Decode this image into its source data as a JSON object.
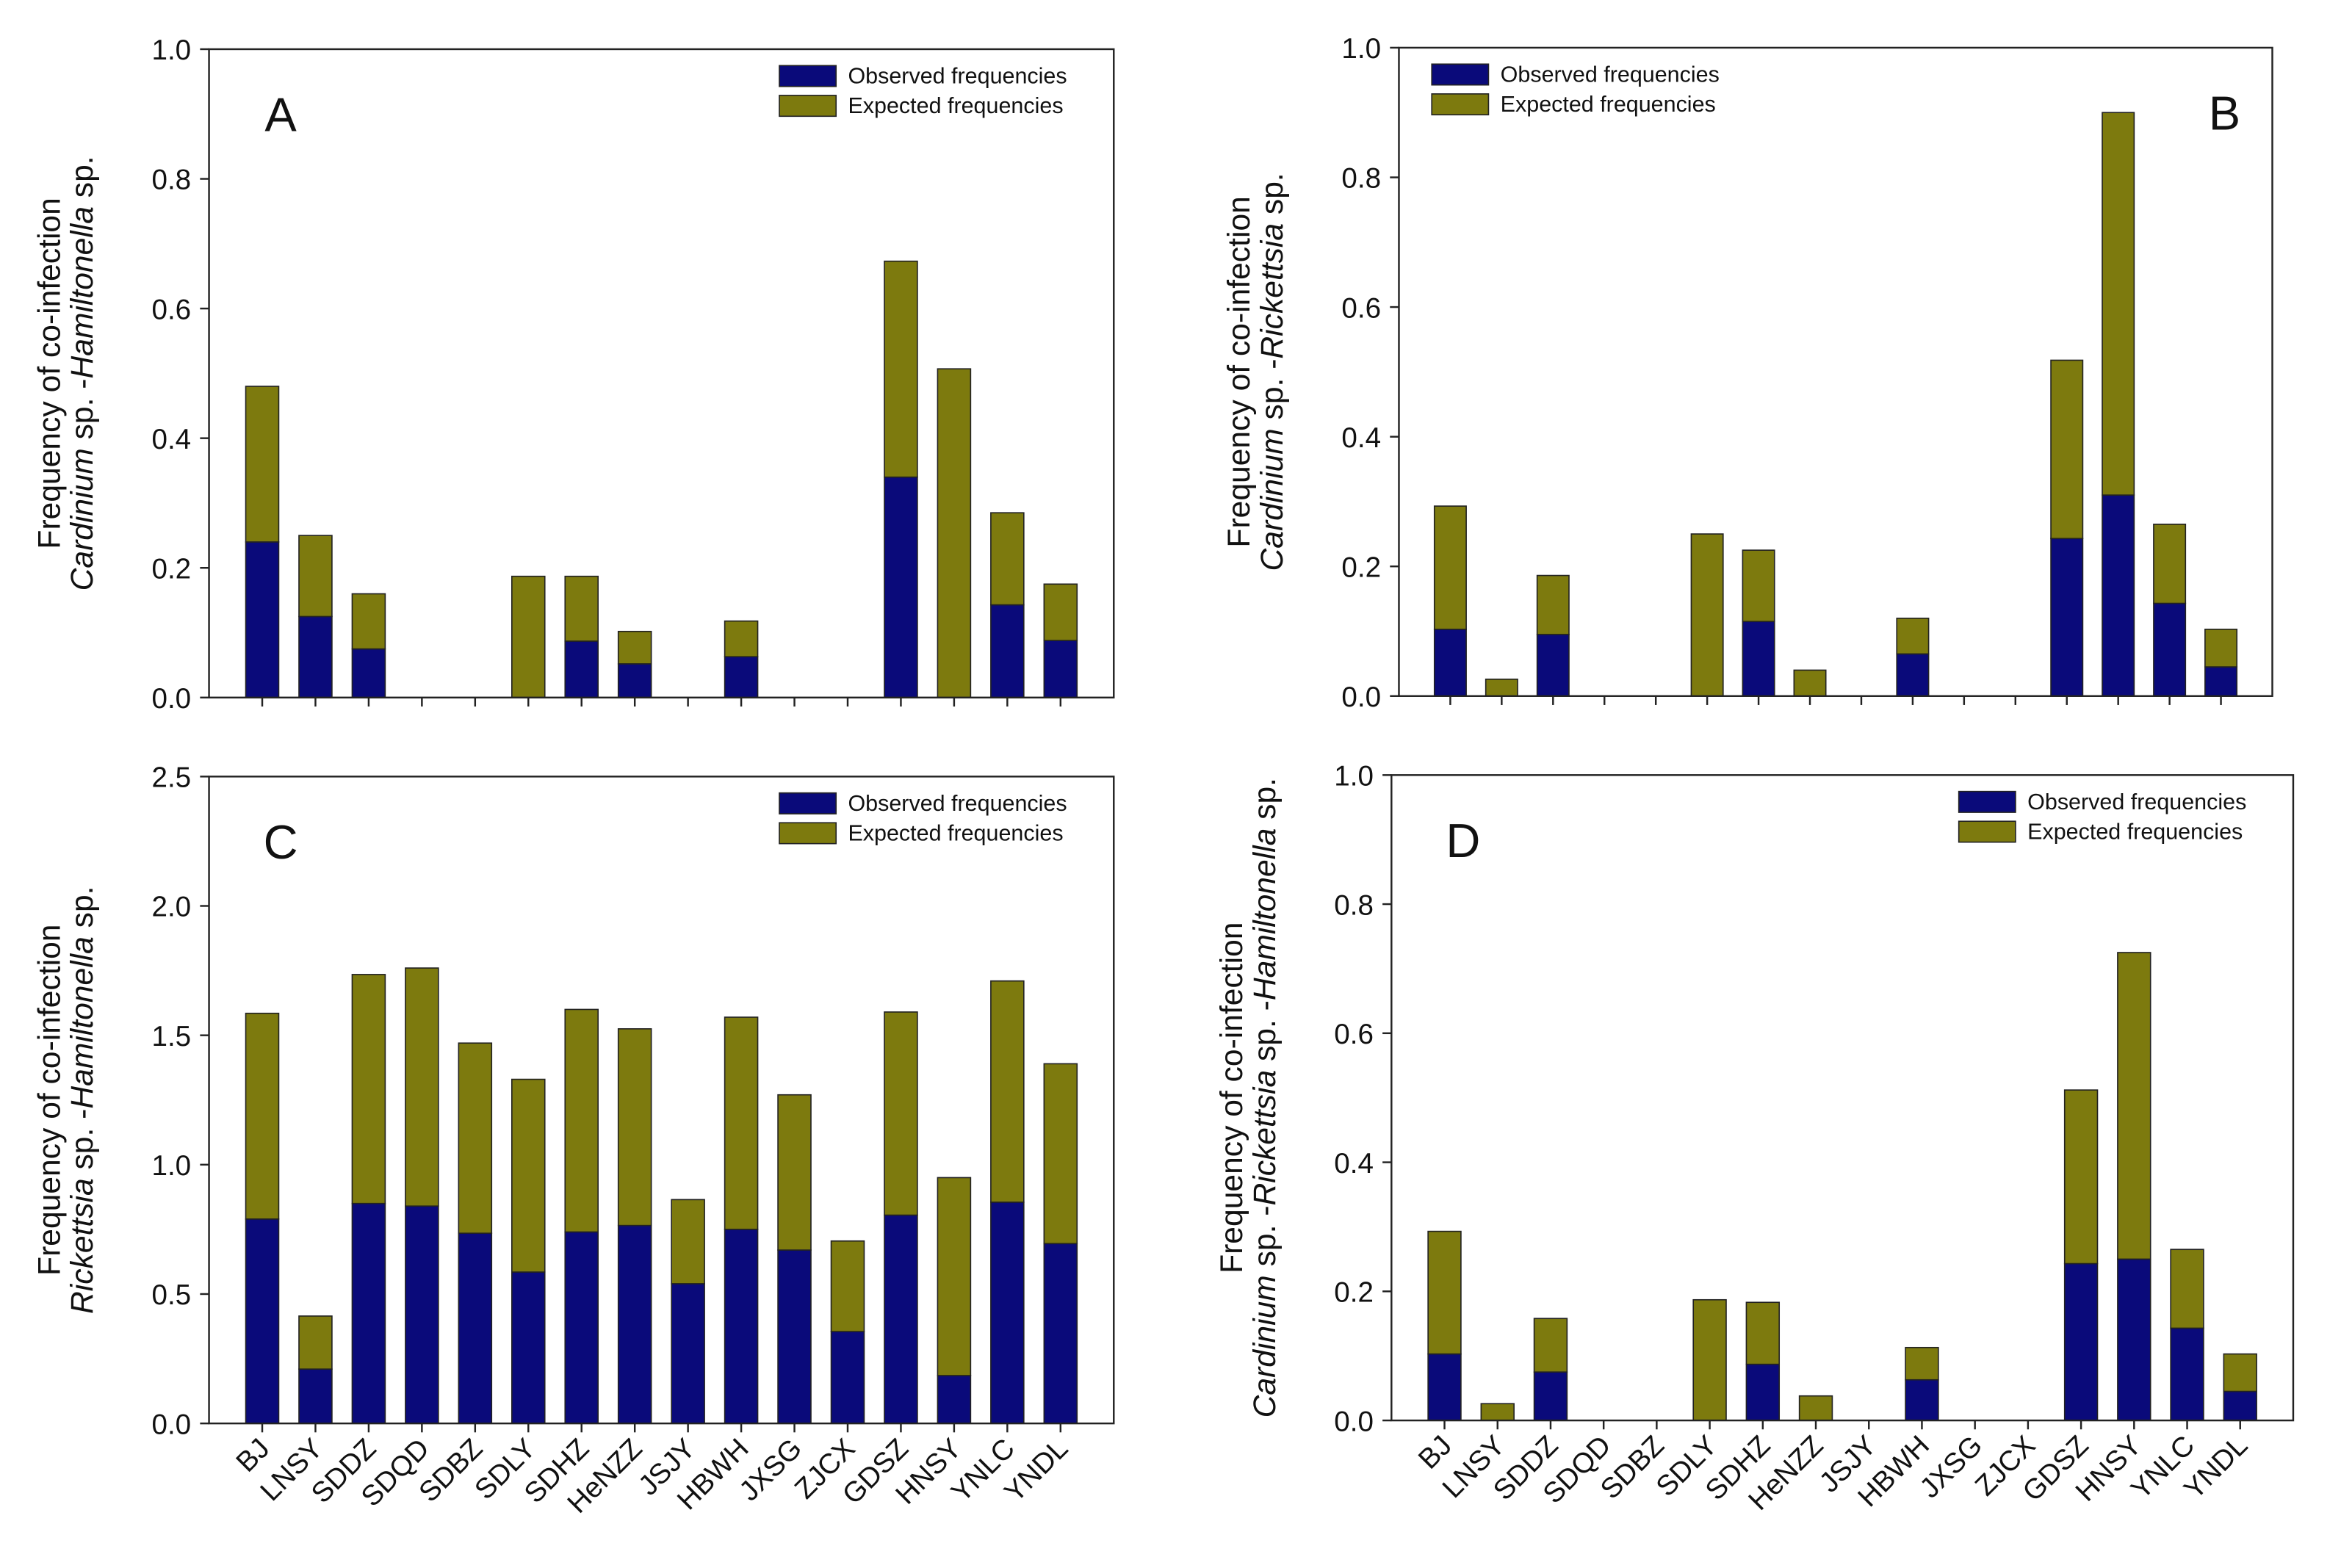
{
  "chart_data": [
    {
      "type": "bar",
      "stacked": true,
      "panel_label": "A",
      "legend": "upper right",
      "ylabel": [
        "Frequency of co-infection",
        [
          "Cardinium",
          " sp. -",
          "Hamiltonella",
          " sp."
        ]
      ],
      "categories": [
        null,
        null,
        null,
        null,
        null,
        null,
        null,
        null,
        null,
        null,
        null,
        null,
        null,
        null,
        null,
        null
      ],
      "ylim": [
        0,
        1
      ],
      "yticks": [
        {
          "value": 0,
          "label": "0.0"
        },
        {
          "value": 0.2,
          "label": "0.2"
        },
        {
          "value": 0.4,
          "label": "0.4"
        },
        {
          "value": 0.6,
          "label": "0.6"
        },
        {
          "value": 0.8,
          "label": "0.8"
        },
        {
          "value": 1,
          "label": "1.0"
        }
      ],
      "series": [
        {
          "name": "Observed frequencies",
          "color": "#0a0a7a",
          "values": [
            0.24,
            0.125,
            0.075,
            0,
            0,
            0,
            0.087,
            0.052,
            0,
            0.063,
            0,
            0,
            0.34,
            0,
            0.143,
            0.088
          ]
        },
        {
          "name": "Expected frequencies",
          "color": "#7d7a0e",
          "values": [
            0.24,
            0.125,
            0.085,
            0,
            0,
            0.187,
            0.1,
            0.05,
            0,
            0.055,
            0,
            0,
            0.333,
            0.507,
            0.142,
            0.087
          ]
        }
      ]
    },
    {
      "type": "bar",
      "stacked": true,
      "panel_label": "B",
      "legend": "upper left",
      "ylabel": [
        "Frequency of co-infection",
        [
          "Cardinium",
          " sp. -",
          "Rickettsia",
          " sp."
        ]
      ],
      "categories": [
        null,
        null,
        null,
        null,
        null,
        null,
        null,
        null,
        null,
        null,
        null,
        null,
        null,
        null,
        null,
        null
      ],
      "ylim": [
        0,
        1
      ],
      "yticks": [
        {
          "value": 0,
          "label": "0.0"
        },
        {
          "value": 0.2,
          "label": "0.2"
        },
        {
          "value": 0.4,
          "label": "0.4"
        },
        {
          "value": 0.6,
          "label": "0.6"
        },
        {
          "value": 0.8,
          "label": "0.8"
        },
        {
          "value": 1,
          "label": "1.0"
        }
      ],
      "series": [
        {
          "name": "Observed frequencies",
          "color": "#0a0a7a",
          "values": [
            0.103,
            0,
            0.095,
            0,
            0,
            0,
            0.115,
            0,
            0,
            0.065,
            0,
            0,
            0.243,
            0.31,
            0.143,
            0.045
          ]
        },
        {
          "name": "Expected frequencies",
          "color": "#7d7a0e",
          "values": [
            0.19,
            0.026,
            0.091,
            0,
            0,
            0.25,
            0.11,
            0.04,
            0,
            0.055,
            0,
            0,
            0.275,
            0.59,
            0.122,
            0.058
          ]
        }
      ]
    },
    {
      "type": "bar",
      "stacked": true,
      "panel_label": "C",
      "legend": "upper right",
      "ylabel": [
        "Frequency of co-infection",
        [
          "Rickettsia",
          " sp. -",
          "Hamiltonella",
          " sp."
        ]
      ],
      "categories": [
        "BJ",
        "LNSY",
        "SDDZ",
        "SDQD",
        "SDBZ",
        "SDLY",
        "SDHZ",
        "HeNZZ",
        "JSJY",
        "HBWH",
        "JXSG",
        "ZJCX",
        "GDSZ",
        "HNSY",
        "YNLC",
        "YNDL"
      ],
      "ylim": [
        0,
        2.5
      ],
      "yticks": [
        {
          "value": 0,
          "label": "0.0"
        },
        {
          "value": 0.5,
          "label": "0.5"
        },
        {
          "value": 1,
          "label": "1.0"
        },
        {
          "value": 1.5,
          "label": "1.5"
        },
        {
          "value": 2,
          "label": "2.0"
        },
        {
          "value": 2.5,
          "label": "2.5"
        }
      ],
      "series": [
        {
          "name": "Observed frequencies",
          "color": "#0a0a7a",
          "values": [
            0.79,
            0.21,
            0.85,
            0.84,
            0.735,
            0.585,
            0.74,
            0.765,
            0.54,
            0.75,
            0.67,
            0.355,
            0.805,
            0.185,
            0.855,
            0.695
          ]
        },
        {
          "name": "Expected frequencies",
          "color": "#7d7a0e",
          "values": [
            0.795,
            0.205,
            0.885,
            0.92,
            0.735,
            0.745,
            0.86,
            0.76,
            0.325,
            0.82,
            0.6,
            0.35,
            0.785,
            0.765,
            0.855,
            0.695
          ]
        }
      ]
    },
    {
      "type": "bar",
      "stacked": true,
      "panel_label": "D",
      "legend": "upper right",
      "ylabel": [
        "Frequency of co-infection",
        [
          "Cardinium",
          " sp. -",
          "Rickettsia",
          " sp. -",
          "Hamiltonella",
          " sp."
        ]
      ],
      "categories": [
        "BJ",
        "LNSY",
        "SDDZ",
        "SDQD",
        "SDBZ",
        "SDLY",
        "SDHZ",
        "HeNZZ",
        "JSJY",
        "HBWH",
        "JXSG",
        "ZJCX",
        "GDSZ",
        "HNSY",
        "YNLC",
        "YNDL"
      ],
      "ylim": [
        0,
        1
      ],
      "yticks": [
        {
          "value": 0,
          "label": "0.0"
        },
        {
          "value": 0.2,
          "label": "0.2"
        },
        {
          "value": 0.4,
          "label": "0.4"
        },
        {
          "value": 0.6,
          "label": "0.6"
        },
        {
          "value": 0.8,
          "label": "0.8"
        },
        {
          "value": 1,
          "label": "1.0"
        }
      ],
      "series": [
        {
          "name": "Observed frequencies",
          "color": "#0a0a7a",
          "values": [
            0.103,
            0,
            0.075,
            0,
            0,
            0,
            0.087,
            0,
            0,
            0.063,
            0,
            0,
            0.243,
            0.25,
            0.143,
            0.045
          ]
        },
        {
          "name": "Expected frequencies",
          "color": "#7d7a0e",
          "values": [
            0.19,
            0.026,
            0.083,
            0,
            0,
            0.187,
            0.096,
            0.038,
            0,
            0.05,
            0,
            0,
            0.269,
            0.475,
            0.122,
            0.058
          ]
        }
      ]
    }
  ]
}
